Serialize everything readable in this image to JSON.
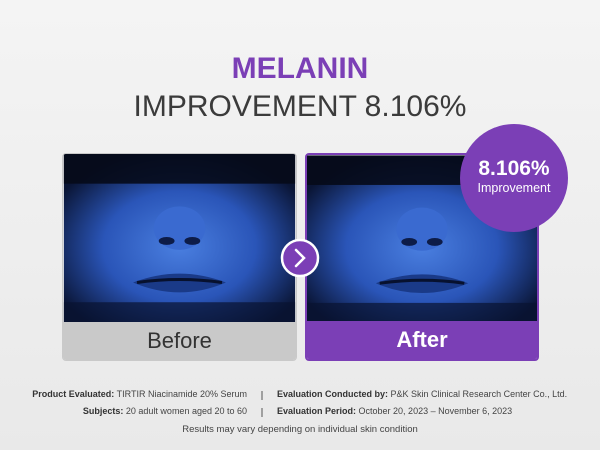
{
  "header": {
    "title": "MELANIN",
    "subtitle": "IMPROVEMENT 8.106%"
  },
  "panels": [
    {
      "label": "Before"
    },
    {
      "label": "After"
    }
  ],
  "badge": {
    "value": "8.106%",
    "label": "Improvement"
  },
  "footer": {
    "rows": [
      [
        {
          "key": "Product Evaluated:",
          "text": "TIRTIR Niacinamide 20% Serum"
        },
        {
          "key": "Evaluation Conducted by:",
          "text": "P&K Skin Clinical Research Center Co., Ltd."
        }
      ],
      [
        {
          "key": "Subjects:",
          "text": "20 adult women aged 20 to 60"
        },
        {
          "key": "Evaluation Period:",
          "text": "October 20, 2023 – November 6, 2023"
        }
      ]
    ],
    "note": "Results may vary depending on individual skin condition"
  }
}
